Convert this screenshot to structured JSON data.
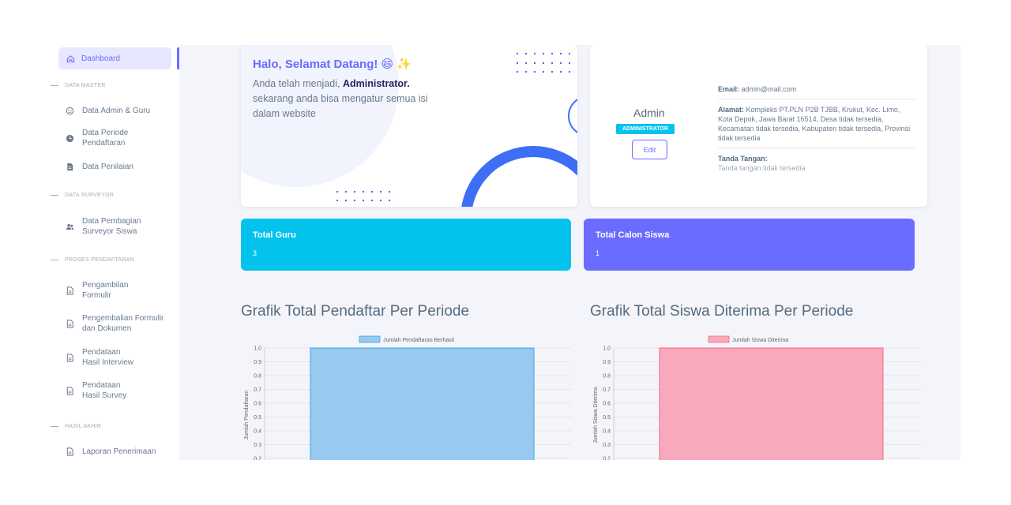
{
  "sidebar": {
    "active_item": "Dashboard",
    "sections": [
      {
        "title": "DATA MASTER",
        "items": [
          "Data Admin & Guru",
          "Data Periode Pendaftaran",
          "Data Penilaian"
        ]
      },
      {
        "title": "DATA SURVEYOR",
        "items": [
          "Data Pembagian Surveyor Siswa"
        ]
      },
      {
        "title": "PROSES PENDAFTARAN",
        "items": [
          "Pengambilan Formulir",
          "Pengembalian Formulir dan Dokumen",
          "Pendataan Hasil Interview",
          "Pendataan Hasil Survey"
        ]
      },
      {
        "title": "HASIL AKHIR",
        "items": [
          "Laporan Penerimaan"
        ]
      }
    ],
    "items": {
      "data_admin": "Data Admin & Guru",
      "data_periode_1": "Data Periode",
      "data_periode_2": "Pendaftaran",
      "data_penilaian": "Data Penilaian",
      "data_pembagian_1": "Data Pembagian",
      "data_pembagian_2": "Surveyor Siswa",
      "pengambilan_1": "Pengambilan",
      "pengambilan_2": "Formulir",
      "pengembalian_1": "Pengembalian Formulir",
      "pengembalian_2": "dan Dokumen",
      "interview_1": "Pendataan",
      "interview_2": "Hasil Interview",
      "survey_1": "Pendataan",
      "survey_2": "Hasil Survey",
      "laporan": "Laporan Penerimaan"
    },
    "section_titles": {
      "data_master": "DATA MASTER",
      "data_surveyor": "DATA SURVEYOR",
      "proses": "PROSES PENDAFTARAN",
      "hasil": "HASIL AKHIR"
    }
  },
  "welcome": {
    "title": "Halo, Selamat Datang! 😄 ✨",
    "line_prefix": "Anda telah menjadi, ",
    "role_bold": "Administrator.",
    "line_rest": "sekarang anda bisa mengatur semua isi dalam website"
  },
  "profile": {
    "name": "Admin",
    "role_badge": "ADMINISTRATOR",
    "edit_label": "Edit",
    "email_label": "Email:",
    "email": "admin@mail.com",
    "address_label": "Alamat:",
    "address": "Kompleks PT.PLN P2B TJBB, Krukut, Kec. Limo, Kota Depok, Jawa Barat 16514, Desa tidak tersedia, Kecamatan tidak tersedia, Kabupaten tidak tersedia, Provinsi tidak tersedia",
    "signature_label": "Tanda Tangan:",
    "signature_value": "Tanda tangan tidak tersedia"
  },
  "stats": {
    "guru_label": "Total Guru",
    "guru_value": "3",
    "siswa_label": "Total Calon Siswa",
    "siswa_value": "1",
    "guru_color": "#03c3ec",
    "siswa_color": "#696cff"
  },
  "charts": {
    "left_title": "Grafik Total Pendaftar Per Periode",
    "right_title": "Grafik Total Siswa Diterima Per Periode"
  },
  "chart_data": [
    {
      "type": "bar",
      "legend": "Jumlah Pendaftaran Berhasil",
      "ylabel": "Jumlah Pendaftaran",
      "ticks": [
        "1.0",
        "0.9",
        "0.8",
        "0.7",
        "0.6",
        "0.5",
        "0.4",
        "0.3",
        "0.2"
      ],
      "values": [
        1
      ],
      "ylim": [
        0,
        1
      ],
      "fill": "#99c9ef",
      "stroke": "#36a2eb"
    },
    {
      "type": "bar",
      "legend": "Jumlah Siswa Diterima",
      "ylabel": "Jumlah Siswa Diterima",
      "ticks": [
        "1.0",
        "0.9",
        "0.8",
        "0.7",
        "0.6",
        "0.5",
        "0.4",
        "0.3",
        "0.2"
      ],
      "values": [
        1
      ],
      "ylim": [
        0,
        1
      ],
      "fill": "#f8a9bb",
      "stroke": "#ff6384"
    }
  ]
}
